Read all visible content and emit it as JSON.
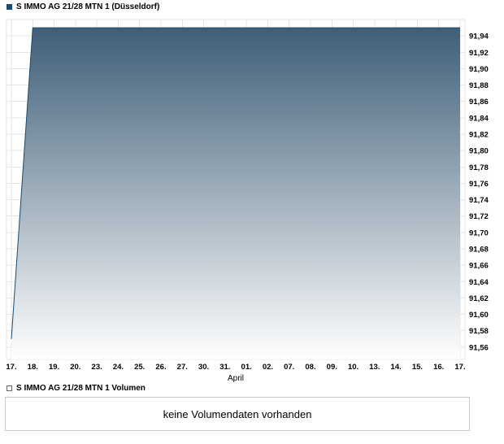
{
  "price_legend": {
    "label": "S IMMO AG 21/28 MTN 1 (Düsseldorf)",
    "marker_color": "#1b4a72"
  },
  "volume_legend": {
    "label": "S IMMO AG 21/28 MTN 1 Volumen",
    "marker_color": "#ffffff"
  },
  "volume_panel": {
    "message": "keine Volumendaten vorhanden"
  },
  "chart_data": {
    "type": "area",
    "title": "S IMMO AG 21/28 MTN 1 (Düsseldorf)",
    "categories": [
      "17.",
      "18.",
      "19.",
      "20.",
      "23.",
      "24.",
      "25.",
      "26.",
      "27.",
      "30.",
      "31.",
      "01.",
      "02.",
      "07.",
      "08.",
      "09.",
      "10.",
      "13.",
      "14.",
      "15.",
      "16.",
      "17."
    ],
    "values": [
      91.57,
      91.95,
      91.95,
      91.95,
      91.95,
      91.95,
      91.95,
      91.95,
      91.95,
      91.95,
      91.95,
      91.95,
      91.95,
      91.95,
      91.95,
      91.95,
      91.95,
      91.95,
      91.95,
      91.95,
      91.95,
      91.95
    ],
    "x_axis_secondary_label": "April",
    "y_ticks": [
      91.94,
      91.92,
      91.9,
      91.88,
      91.86,
      91.84,
      91.82,
      91.8,
      91.78,
      91.76,
      91.74,
      91.72,
      91.7,
      91.68,
      91.66,
      91.64,
      91.62,
      91.6,
      91.58,
      91.56
    ],
    "y_tick_labels": [
      "91,94",
      "91,92",
      "91,90",
      "91,88",
      "91,86",
      "91,84",
      "91,82",
      "91,80",
      "91,78",
      "91,76",
      "91,74",
      "91,72",
      "91,70",
      "91,68",
      "91,66",
      "91,64",
      "91,62",
      "91,60",
      "91,58",
      "91,56"
    ],
    "ylim": [
      91.545,
      91.96
    ],
    "grid": true,
    "legend_position": "top-left",
    "line_color": "#1b4a72",
    "fill_top_color": "#3a5a74",
    "fill_bottom_color": "#ffffff",
    "grid_color": "#e4e4e4"
  }
}
